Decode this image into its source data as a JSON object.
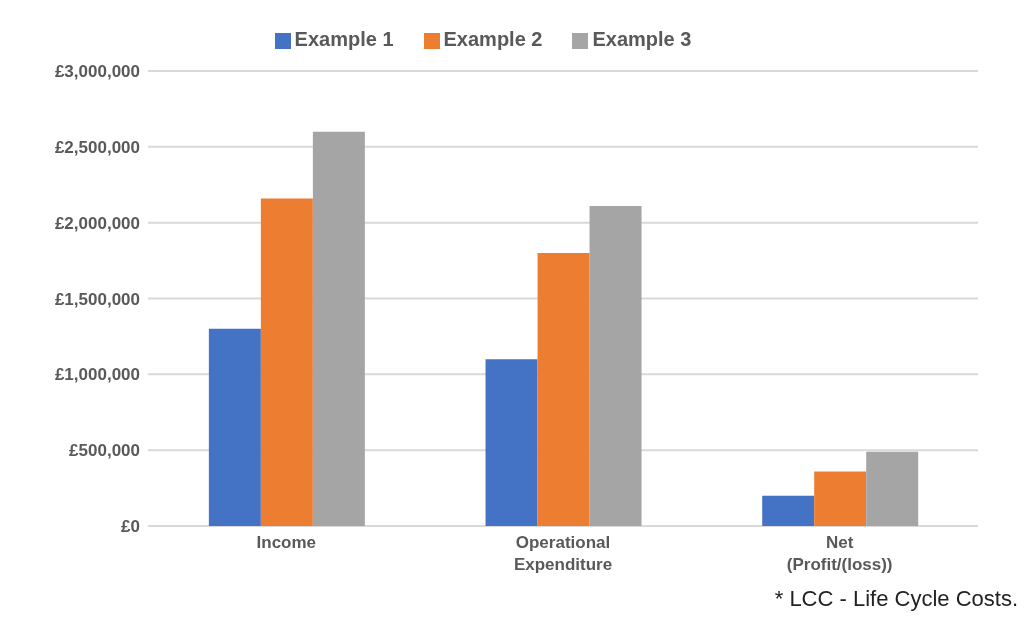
{
  "chart_data": {
    "type": "bar",
    "categories": [
      "Income",
      "Operational Expenditure",
      "Net (Profit/(loss))"
    ],
    "series": [
      {
        "name": "Example 1",
        "color": "#4472c4",
        "values": [
          1300000,
          1100000,
          200000
        ]
      },
      {
        "name": "Example 2",
        "color": "#ed7d31",
        "values": [
          2160000,
          1800000,
          360000
        ]
      },
      {
        "name": "Example 3",
        "color": "#a5a5a5",
        "values": [
          2600000,
          2110000,
          490000
        ]
      }
    ],
    "ylim": [
      0,
      3000000
    ],
    "yticks": [
      {
        "value": 0,
        "label": "£0"
      },
      {
        "value": 500000,
        "label": "£500,000"
      },
      {
        "value": 1000000,
        "label": "£1,000,000"
      },
      {
        "value": 1500000,
        "label": "£1,500,000"
      },
      {
        "value": 2000000,
        "label": "£2,000,000"
      },
      {
        "value": 2500000,
        "label": "£2,500,000"
      },
      {
        "value": 3000000,
        "label": "£3,000,000"
      }
    ],
    "grid": "y",
    "legend": "top",
    "annotations": [
      "* LCC - Life Cycle Costs."
    ]
  }
}
